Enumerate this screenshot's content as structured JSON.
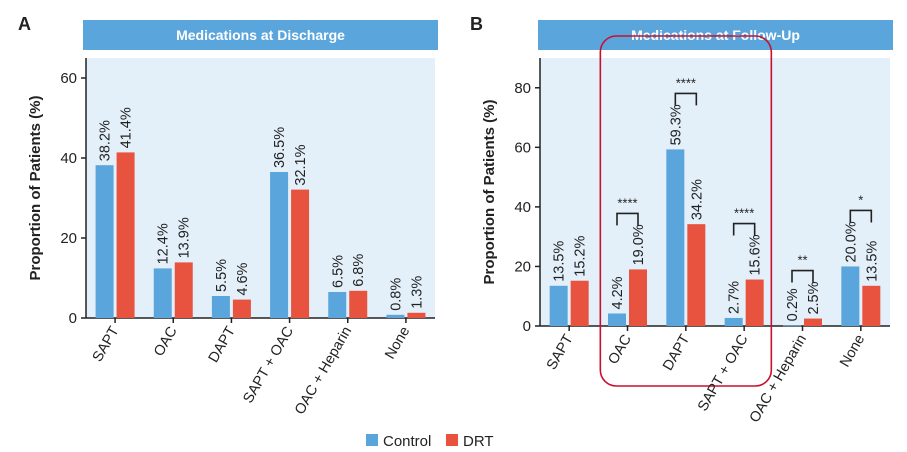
{
  "colors": {
    "control": "#5aa6dc",
    "drt": "#e8533f",
    "header_bg": "#5aa6dc",
    "plot_bg": "#e3eff9",
    "highlight": "#c8102e"
  },
  "legend": {
    "control": "Control",
    "drt": "DRT",
    "placement": "bottom-center"
  },
  "chart_data": [
    {
      "panel": "A",
      "type": "bar",
      "title": "Medications at Discharge",
      "xlabel": "",
      "ylabel": "Proportion of Patients (%)",
      "ylim": [
        0,
        65
      ],
      "yticks": [
        0,
        20,
        40,
        60
      ],
      "categories": [
        "SAPT",
        "OAC",
        "DAPT",
        "SAPT + OAC",
        "OAC + Heparin",
        "None"
      ],
      "series": [
        {
          "name": "Control",
          "values": [
            38.2,
            12.4,
            5.5,
            36.5,
            6.5,
            0.8
          ],
          "labels": [
            "38.2%",
            "12.4%",
            "5.5%",
            "36.5%",
            "6.5%",
            "0.8%"
          ]
        },
        {
          "name": "DRT",
          "values": [
            41.4,
            13.9,
            4.6,
            32.1,
            6.8,
            1.3
          ],
          "labels": [
            "41.4%",
            "13.9%",
            "4.6%",
            "32.1%",
            "6.8%",
            "1.3%"
          ]
        }
      ],
      "significance": [],
      "highlight": []
    },
    {
      "panel": "B",
      "type": "bar",
      "title": "Medications at Follow-Up",
      "xlabel": "",
      "ylabel": "Proportion of Patients (%)",
      "ylim": [
        0,
        90
      ],
      "yticks": [
        0,
        20,
        40,
        60,
        80
      ],
      "categories": [
        "SAPT",
        "OAC",
        "DAPT",
        "SAPT + OAC",
        "OAC + Heparin",
        "None"
      ],
      "series": [
        {
          "name": "Control",
          "values": [
            13.5,
            4.2,
            59.3,
            2.7,
            0.2,
            20.0
          ],
          "labels": [
            "13.5%",
            "4.2%",
            "59.3%",
            "2.7%",
            "0.2%",
            "20.0%"
          ]
        },
        {
          "name": "DRT",
          "values": [
            15.2,
            19.0,
            34.2,
            15.6,
            2.5,
            13.5
          ],
          "labels": [
            "15.2%",
            "19.0%",
            "34.2%",
            "15.6%",
            "2.5%",
            "13.5%"
          ]
        }
      ],
      "significance": [
        {
          "category": "OAC",
          "stars": "****"
        },
        {
          "category": "DAPT",
          "stars": "****"
        },
        {
          "category": "SAPT + OAC",
          "stars": "****"
        },
        {
          "category": "OAC + Heparin",
          "stars": "**"
        },
        {
          "category": "None",
          "stars": "*"
        }
      ],
      "highlight": [
        "OAC",
        "DAPT",
        "SAPT + OAC"
      ]
    }
  ]
}
